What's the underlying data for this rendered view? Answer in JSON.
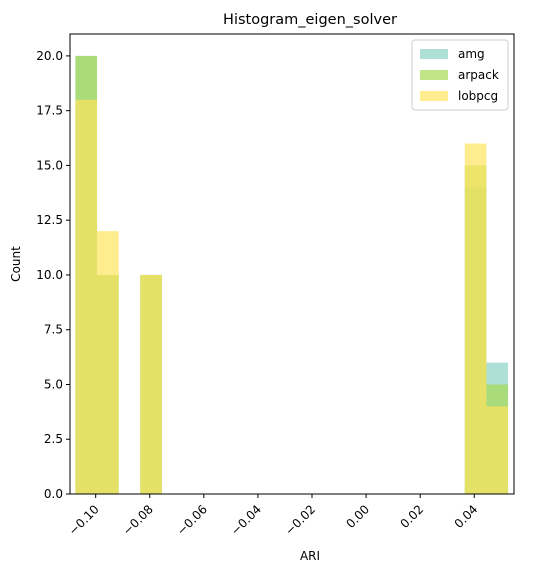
{
  "chart_data": {
    "type": "bar",
    "title": "Histogram_eigen_solver",
    "xlabel": "ARI",
    "ylabel": "Count",
    "xlim": [
      -0.1095,
      0.0547
    ],
    "ylim": [
      0,
      21
    ],
    "xticks": [
      -0.1,
      -0.08,
      -0.06,
      -0.04,
      -0.02,
      0.0,
      0.02,
      0.04
    ],
    "xtick_labels": [
      "−0.10",
      "−0.08",
      "−0.06",
      "−0.04",
      "−0.02",
      "0.00",
      "0.02",
      "0.04"
    ],
    "yticks": [
      0,
      2.5,
      5,
      7.5,
      10,
      12.5,
      15,
      17.5,
      20
    ],
    "ytick_labels": [
      "0.0",
      "2.5",
      "5.0",
      "7.5",
      "10.0",
      "12.5",
      "15.0",
      "17.5",
      "20.0"
    ],
    "bin_width": 0.008,
    "legend_position": "top-right",
    "grid": false,
    "series": [
      {
        "name": "amg",
        "color": "#8dd3c7",
        "bins": [
          {
            "x0": -0.1075,
            "count": 20
          },
          {
            "x0": -0.0995,
            "count": 10
          },
          {
            "x0": -0.0835,
            "count": 10
          },
          {
            "x0": 0.0365,
            "count": 14
          },
          {
            "x0": 0.0445,
            "count": 6
          }
        ]
      },
      {
        "name": "arpack",
        "color": "#a6d854",
        "bins": [
          {
            "x0": -0.1075,
            "count": 20
          },
          {
            "x0": -0.0995,
            "count": 10
          },
          {
            "x0": -0.0835,
            "count": 10
          },
          {
            "x0": 0.0365,
            "count": 15
          },
          {
            "x0": 0.0445,
            "count": 5
          }
        ]
      },
      {
        "name": "lobpcg",
        "color": "#ffe45e",
        "bins": [
          {
            "x0": -0.1075,
            "count": 18
          },
          {
            "x0": -0.0995,
            "count": 12
          },
          {
            "x0": -0.0835,
            "count": 10
          },
          {
            "x0": 0.0365,
            "count": 16
          },
          {
            "x0": 0.0445,
            "count": 4
          }
        ]
      }
    ]
  }
}
